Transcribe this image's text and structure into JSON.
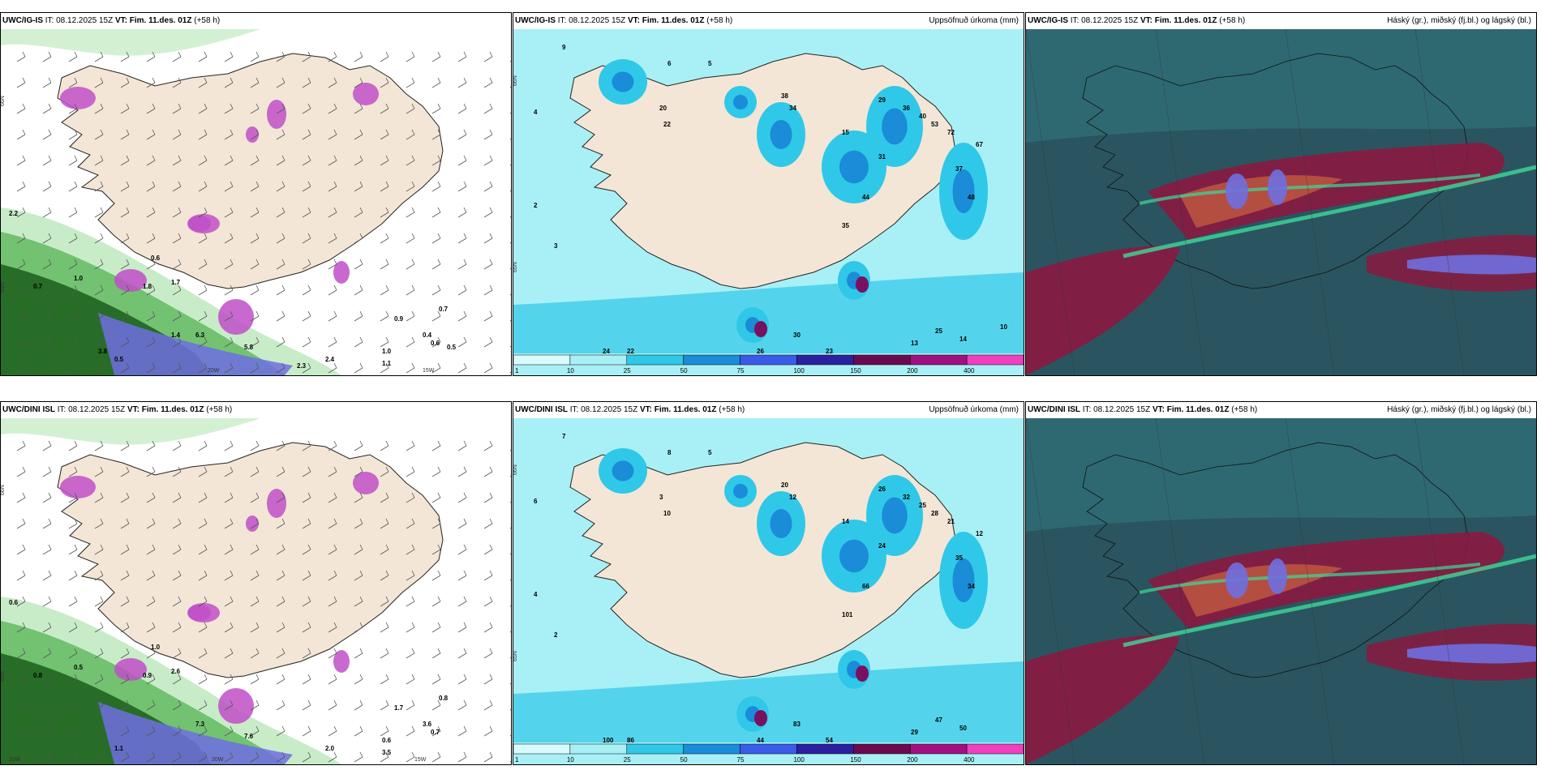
{
  "colors": {
    "land": "#f3e6d6",
    "precip_bg": "#a8f0f5",
    "precip_mid": "#30c8e8",
    "precip_high": "#1a8cd8",
    "magenta": "#c04fc8",
    "green_dark": "#1a5e1a",
    "green_mid": "#5cb85c",
    "green_light": "#c8ecc8",
    "blue_band": "#6f6fe0",
    "cloud_teal": "#2f6b73",
    "cloud_dark": "#2a5560",
    "cloud_red": "#8a1a40",
    "cloud_orange": "#c05a40",
    "cloud_green": "#3ed89a"
  },
  "panels": [
    {
      "model": "UWC/IG-IS",
      "it_label": "IT:",
      "it_value": "08.12.2025 15Z",
      "vt_label": "VT:",
      "vt_value": "Fim. 11.des. 01Z",
      "lead": "(+58 h)",
      "right_title": "",
      "kind": "wind",
      "lat_labels": [
        "66N",
        "65N"
      ],
      "lon_labels": [
        "20W",
        "15W"
      ],
      "values": [
        "2.2",
        "0.7",
        "1.8",
        "1.7",
        "0.6",
        "1.0",
        "0.5",
        "0.9",
        "0.4",
        "6.3",
        "5.8",
        "2.4",
        "1.1",
        "1.0",
        "0.7",
        "0.6",
        "0.5",
        "2.3",
        "1.4",
        "3.8"
      ]
    },
    {
      "model": "UWC/IG-IS",
      "it_label": "IT:",
      "it_value": "08.12.2025 15Z",
      "vt_label": "VT:",
      "vt_value": "Fim. 11.des. 01Z",
      "lead": "(+58 h)",
      "right_title": "Uppsöfnuð úrkoma (mm)",
      "kind": "precip",
      "lat_labels": [
        "66N",
        "65N"
      ],
      "values": [
        "9",
        "4",
        "6",
        "5",
        "2",
        "3",
        "20",
        "22",
        "38",
        "34",
        "15",
        "31",
        "29",
        "36",
        "40",
        "53",
        "72",
        "67",
        "37",
        "48",
        "44",
        "35",
        "30",
        "24",
        "22",
        "23",
        "14",
        "13",
        "25",
        "26",
        "10"
      ],
      "legend": [
        "1",
        "10",
        "25",
        "50",
        "75",
        "100",
        "150",
        "200",
        "400"
      ]
    },
    {
      "model": "UWC/IG-IS",
      "it_label": "IT:",
      "it_value": "08.12.2025 15Z",
      "vt_label": "VT:",
      "vt_value": "Fim. 11.des. 01Z",
      "lead": "(+58 h)",
      "right_title": "Háský (gr.), miðský (fj.bl.) og lágský (bl.)",
      "kind": "cloud"
    },
    {
      "model": "UWC/DINI ISL",
      "it_label": "IT:",
      "it_value": "08.12.2025 15Z",
      "vt_label": "VT:",
      "vt_value": "Fim. 11.des. 01Z",
      "lead": "(+58 h)",
      "right_title": "",
      "kind": "wind",
      "lat_labels": [
        "66N",
        "65N"
      ],
      "lon_labels": [
        "25W",
        "20W",
        "15W"
      ],
      "values": [
        "0.6",
        "0.8",
        "0.9",
        "2.6",
        "1.0",
        "0.5",
        "1.1",
        "1.7",
        "3.6",
        "7.3",
        "7.6",
        "2.0",
        "3.5",
        "0.6",
        "0.8",
        "0.7"
      ]
    },
    {
      "model": "UWC/DINI ISL",
      "it_label": "IT:",
      "it_value": "08.12.2025 15Z",
      "vt_label": "VT:",
      "vt_value": "Fim. 11.des. 01Z",
      "lead": "(+58 h)",
      "right_title": "Uppsöfnuð úrkoma (mm)",
      "kind": "precip",
      "lat_labels": [
        "66N",
        "65N"
      ],
      "values": [
        "7",
        "6",
        "8",
        "5",
        "4",
        "2",
        "3",
        "10",
        "20",
        "12",
        "14",
        "24",
        "26",
        "32",
        "25",
        "28",
        "21",
        "12",
        "35",
        "34",
        "66",
        "101",
        "83",
        "100",
        "86",
        "54",
        "50",
        "29",
        "47",
        "44"
      ],
      "legend": [
        "1",
        "10",
        "25",
        "50",
        "75",
        "100",
        "150",
        "200",
        "400"
      ]
    },
    {
      "model": "UWC/DINI ISL",
      "it_label": "IT:",
      "it_value": "08.12.2025 15Z",
      "vt_label": "VT:",
      "vt_value": "Fim. 11.des. 01Z",
      "lead": "(+58 h)",
      "right_title": "Háský (gr.), miðský (fj.bl.) og lágský (bl.)",
      "kind": "cloud"
    }
  ]
}
